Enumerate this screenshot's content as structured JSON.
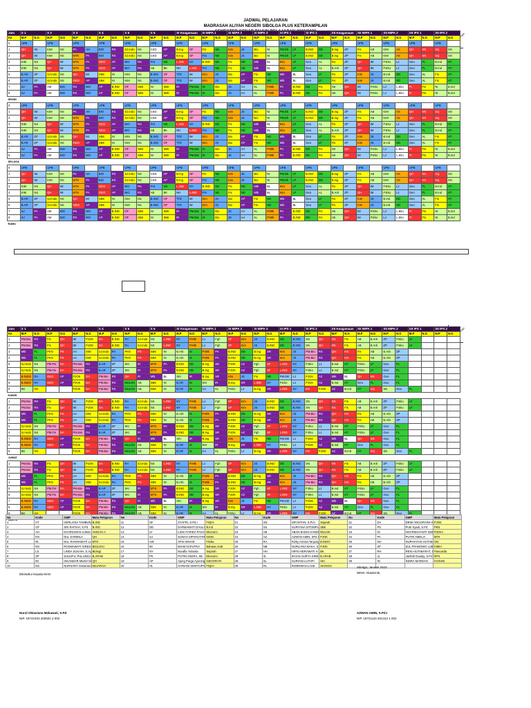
{
  "header": {
    "line1": "JADWAL PELAJARAN",
    "line2": "MADRASAH ALIYAH NEGERI SIBOLGA PLUS KETERAMPILAN",
    "line3": "SEMESTER GENAP TAHUN PELAJARAN 2022/2023"
  },
  "classes": [
    "X 1",
    "X 2",
    "X 3",
    "X 4",
    "X 5",
    "X 6",
    "XI Keagamaan",
    "XI MIPA 1",
    "XI MIPA 2",
    "XI MIPA 3",
    "XI IPS 1",
    "XI IPS 2",
    "XII Keagamaan",
    "XII MIPA 1",
    "XII MIPA 2",
    "XII IPS 1",
    "XII IPS 2"
  ],
  "corner": {
    "hari": "Hari",
    "jam": "Jam",
    "ke": "Ke"
  },
  "col_mp": "M.P",
  "col_ng": "N.G",
  "days_top": [
    "SENIN",
    "SELASA",
    "RABU"
  ],
  "days_bottom": [
    "KAMIS",
    "JUMAT",
    "SABTU"
  ],
  "block1_rows": [
    [
      "0",
      "UPB",
      "",
      "UPB",
      "",
      "UPB",
      "",
      "UPB",
      "",
      "UPB",
      "",
      "UPB",
      "",
      "UPB",
      "",
      "UPB",
      "",
      "UPB",
      "",
      "UPB",
      "",
      "UPB",
      "",
      "UPB",
      "",
      "UPB",
      "",
      "UPB",
      "",
      "UPB",
      "",
      "UPB",
      "",
      "UPB",
      ""
    ],
    [
      "1",
      "QH",
      "IM",
      "KIM",
      "NS",
      "PA",
      "AH",
      "BIO",
      "RS",
      "SJ.Indo",
      "NS",
      "CKD",
      "AP",
      "B.Ing",
      "OF",
      "Fis",
      "ND",
      "Kim",
      "JS",
      "Bio",
      "NI",
      "PM.Ek",
      "LF",
      "B.IND",
      "DD",
      "B.Ing",
      "ZP",
      "Fis",
      "AB",
      "KIM",
      "AS",
      "QH",
      "KN",
      "Soj",
      "SN",
      "Geo",
      "FL"
    ],
    [
      "2",
      "QH",
      "IM",
      "KIM",
      "NS",
      "MTK",
      "PA",
      "BIO",
      "RS",
      "SJ.Indo",
      "NS",
      "CKD",
      "AP",
      "B.Ing",
      "OF",
      "FIS",
      "ND",
      "Kim",
      "JS",
      "Bio",
      "NI",
      "PM.Ek",
      "LF",
      "B.IND",
      "DD",
      "B.Ing",
      "ZP",
      "Fis",
      "AB",
      "KIM",
      "AS",
      "QH",
      "KN",
      "Soj",
      "SN",
      "Geo",
      "FL"
    ],
    [
      "3",
      "KIM",
      "NS",
      "QH",
      "IM",
      "MTK",
      "PA",
      "GEO",
      "AP",
      "BIO",
      "RS",
      "FIS",
      "ND",
      "L.IND",
      "NY",
      "B.IND",
      "DD",
      "Fis",
      "ND",
      "Mtk",
      "BL",
      "Eko",
      "LF",
      "Geo",
      "AL",
      "Fis",
      "ZP",
      "QH",
      "IM",
      "P.Eko",
      "LJ",
      "Geo",
      "FL",
      "B.Ind",
      "HT"
    ],
    [
      "4",
      "KIM",
      "NS",
      "QH",
      "IM",
      "MTK",
      "PA",
      "GEO",
      "AP",
      "BIO",
      "RS",
      "AB",
      "BK",
      "NH",
      "L.IND",
      "FIS",
      "ND",
      "Fis",
      "ND",
      "Mtk",
      "BL",
      "Eko",
      "LF",
      "Geo",
      "AL",
      "B.Arb",
      "ZP",
      "QH",
      "IM",
      "P.Eko",
      "LJ",
      "Geo",
      "FL",
      "B.Ind",
      "HT"
    ],
    [
      "5",
      "B.AR",
      "ZP",
      "SJ.Indo",
      "NS",
      "QH",
      "IM",
      "SBK",
      "NI",
      "KIM",
      "NS",
      "B.ING",
      "OF",
      "TFZ",
      "IM",
      "Kim",
      "JS",
      "Bio",
      "AP",
      "Fis",
      "ND",
      "Mtk",
      "BL",
      "Geo",
      "LF",
      "Fis",
      "ZP",
      "Kim",
      "JS",
      "B.Ind",
      "DD",
      "Geo",
      "AL",
      "Fis",
      "HT"
    ],
    [
      "6",
      "B.AR",
      "ZP",
      "SJ.Indo",
      "NS",
      "GEO",
      "AP",
      "SBK",
      "NI",
      "KIM",
      "NS",
      "B.ING",
      "OF",
      "TFZ",
      "IM",
      "Kim",
      "JS",
      "Bio",
      "AP",
      "Fis",
      "ND",
      "Mtk",
      "BL",
      "Geo",
      "LF",
      "Fis",
      "ZP",
      "Kim",
      "JS",
      "B.Ind",
      "DD",
      "Geo",
      "AL",
      "Fis",
      "HT"
    ],
    [
      "7",
      "SJ",
      "PA",
      "AM",
      "BIO",
      "RS",
      "BIO",
      "AP",
      "B.IND",
      "OF",
      "SBK",
      "NI",
      "SBK",
      "IR",
      "PM.Bat",
      "IS",
      "Bio",
      "JS",
      "AA",
      "KL",
      "P.Mtk",
      "PA",
      "B.IND",
      "DD",
      "Fis",
      "AB",
      "QH",
      "IM",
      "P.Eko",
      "LJ",
      "L.Eko",
      "FI",
      "Fis",
      "NI",
      "B.Ind",
      "HT",
      "P.Eko",
      "LF"
    ],
    [
      "8",
      "SJ",
      "PA",
      "AM",
      "BIO",
      "RS",
      "BIO",
      "AP",
      "B.IND",
      "OF",
      "SBK",
      "NI",
      "SBK",
      "IR",
      "PM.Bat",
      "IS",
      "Bio",
      "JS",
      "AA",
      "KL",
      "P.Mtk",
      "PA",
      "B.IND",
      "DD",
      "Fis",
      "AB",
      "QH",
      "IM",
      "P.Eko",
      "LJ",
      "L.Eko",
      "FI",
      "Fis",
      "NI",
      "B.Ind",
      "HT",
      "P.Eko",
      "LF"
    ]
  ],
  "block2_rows": [
    [
      "1",
      "PM.Bio",
      "RS",
      "Fis",
      "QH",
      "IM",
      "PJOK",
      "DA",
      "B.IND",
      "RA",
      "SJ.Indo",
      "NS",
      "L.IND",
      "NY",
      "P.Mtk",
      "LJ",
      "Fgh",
      "SF",
      "Kim",
      "JS",
      "B.IND",
      "DD",
      "B.ING",
      "SN",
      "QH",
      "KN",
      "Fis",
      "AB",
      "B.Arb",
      "ZP",
      "P.Eko",
      "LF"
    ],
    [
      "2",
      "PM.Bio",
      "RS",
      "Fis",
      "QH",
      "IM",
      "PJOK",
      "DA",
      "B.IND",
      "RA",
      "SJ.Indo",
      "NS",
      "L.IND",
      "NY",
      "P.Mtk",
      "LJ",
      "Fgh",
      "SF",
      "Kim",
      "JS",
      "B.IND",
      "DD",
      "B.ING",
      "SN",
      "QH",
      "KN",
      "Fis",
      "AB",
      "B.Arb",
      "ZP",
      "P.Eko",
      "LF"
    ],
    [
      "3",
      "Mtk",
      "FL",
      "PKN",
      "PS",
      "AA",
      "MW",
      "SJ.Indo",
      "RA",
      "PKN",
      "PS",
      "SBK",
      "NI",
      "B.Arb",
      "IS",
      "P.Mtk",
      "PA",
      "B.IND",
      "DD",
      "B.Ing",
      "SR",
      "Kim",
      "JS",
      "PM.Bio",
      "RS",
      "QH",
      "KN",
      "Fis",
      "AB",
      "B.Arb",
      "ZP"
    ],
    [
      "4",
      "Mtk",
      "FL",
      "PKN",
      "PS",
      "AA",
      "MW",
      "SJ.Indo",
      "RA",
      "PKN",
      "PS",
      "SBK",
      "NI",
      "B.Arb",
      "IS",
      "P.Mtk",
      "PA",
      "B.IND",
      "DD",
      "B.Ing",
      "SR",
      "Kim",
      "JS",
      "PM.Bio",
      "RS",
      "QH",
      "KN",
      "Fis",
      "AB",
      "B.Arb",
      "ZP"
    ],
    [
      "5",
      "SJ.Indo",
      "NS",
      "PM.Fis",
      "DA",
      "PM.Bio",
      "RS",
      "B.AR",
      "ZP",
      "SKI",
      "IR",
      "MTK",
      "PA",
      "B.IND",
      "DD",
      "B.Ing",
      "SR",
      "PJOK",
      "AZ",
      "Fgh",
      "SF",
      "L.IND",
      "NY",
      "P.Eko",
      "LJ",
      "B.Ind",
      "HT",
      "P.Eko",
      "LF",
      "Geo",
      "FL"
    ],
    [
      "6",
      "SJ.Indo",
      "NS",
      "PM.Fis",
      "DA",
      "PM.Bio",
      "RS",
      "B.AR",
      "ZP",
      "SKI",
      "IR",
      "MTK",
      "PA",
      "B.IND",
      "DD",
      "B.Ing",
      "SR",
      "PJOK",
      "AZ",
      "Fgh",
      "SF",
      "L.IND",
      "NY",
      "P.Eko",
      "LJ",
      "B.Ind",
      "HT",
      "P.Eko",
      "LF",
      "Geo",
      "FL"
    ],
    [
      "7",
      "B.INDO",
      "RA",
      "GEO",
      "AP",
      "PJOK",
      "DA",
      "PM.Bio",
      "RS",
      "QH",
      "IR",
      "Mtk",
      "BL",
      "SKI",
      "IR",
      "B.Ing",
      "SR",
      "Kim",
      "JS",
      "Fis",
      "ND",
      "PM.Ekl",
      "LJ",
      "PJOK",
      "AZ",
      "Mtk",
      "BL",
      "QH",
      "KN",
      "Geo",
      "FL"
    ],
    [
      "8",
      "B.INDO",
      "RA",
      "GEO",
      "AP",
      "PJOK",
      "DA",
      "PM.Bio",
      "RS",
      "MULOK",
      "AB",
      "SBK",
      "NI",
      "B.AR",
      "IS",
      "SKI",
      "IR",
      "B.Ing",
      "SR",
      "L.IND",
      "NY",
      "P.Eko",
      "LJ",
      "PJOK",
      "AZ",
      "B.Ind",
      "HT",
      "Geo",
      "FL",
      "Geo",
      "FL"
    ],
    [
      "9",
      "BK",
      "HH",
      "",
      "",
      "PJOK",
      "DA",
      "PM.Bio",
      "RS",
      "MULOK",
      "AB",
      "SBK",
      "NI",
      "B.AR",
      "IS",
      "AA",
      "KL",
      "P.Eko",
      "LJ",
      "B.Ing",
      "SR",
      "L.IND",
      "NY",
      "KN",
      "PJOK",
      "AZ",
      "B.Ind",
      "HT",
      "Soj",
      "SN",
      "Geo",
      "FL"
    ]
  ],
  "legend_headers": [
    "No",
    "Kode",
    "GMP",
    "Mata Pelajaran",
    "No",
    "Kode",
    "GMP",
    "Mata Pelajaran",
    "No",
    "Kode",
    "GMP",
    "Mata Pelajaran",
    "No",
    "Kode",
    "GMP",
    "Mata Pelajaran"
  ],
  "legend": [
    [
      "1",
      "HT",
      "HERLIANA TAMBUNAN, S.Pd",
      "B.IND",
      "11",
      "SF",
      "SYAFRI, S.Pd.I",
      "FIQIH",
      "21",
      "SN",
      "SRI INTAN, S.Pd.I",
      "Sejarah",
      "31",
      "DA",
      "DEWI ANGGRAINI HUTABARAT,S.Pd",
      "PJOK"
    ],
    [
      "2",
      "OF",
      "SRI RAFIAH, S.Pd",
      "B.ING",
      "12",
      "DD",
      "DARMAWATI DAULAY, S.Pd",
      "B.Ind",
      "22",
      "SS",
      "SURYANA SITOMPUL, S.Pd",
      "SBK",
      "32",
      "PS",
      "Putri Syadi, S.Pd",
      "PKN"
    ],
    [
      "3",
      "AH",
      "KHAIRUMAN LUBIS, S.Ag",
      "AKIDAH A",
      "13",
      "LF",
      "LIDIA FARIDA PASARIBU, S",
      "Ekonomi",
      "23",
      "AB",
      "ABAN BADIS HANDIBIR, SP",
      "MULOK",
      "33",
      "NI",
      "NOVRIDAYANTI SIMANORA, S.Pd",
      "FISIKA"
    ],
    [
      "4",
      "KN",
      "Dra. KARMILA",
      "QH",
      "14",
      "SJ",
      "SUNAH SIPAHUTAR, S.Pd.I",
      "KIMIA",
      "24",
      "AZ",
      "AZWAN AMIN, SPd.I",
      "PJOK",
      "34",
      "PA",
      "PUTRI AMELIA",
      "MTK"
    ],
    [
      "5",
      "RL",
      "Dra. RAHMAWATI LUBIS",
      "MTK",
      "15",
      "AW",
      "AFNI WAHID",
      "Fisika",
      "25",
      "RA",
      "Rizky Annisa Tanjung,S.Pd",
      "B.INDO",
      "35",
      "NH",
      "NURHAYANI HUTABARAT, S.Pd",
      "SKI"
    ],
    [
      "6",
      "RS",
      "ROSMAWATI SIREGAR",
      "BIOLOGI",
      "16",
      "IM",
      "IMAM SAPUTRA",
      "Bahasa Arab",
      "26",
      "NB",
      "NURLIANA BAKA, S.Pd",
      "PJOK",
      "36",
      "ZP",
      "ZUL PRABOWO LUBIS, S.Pd",
      "KIMIA"
    ],
    [
      "7",
      "LS",
      "LINDA SUKAIH, S.Ag",
      "Biologi",
      "17",
      "NY",
      "Nurafla Yolanda",
      "Sejarah",
      "27",
      "HH",
      "HIPSI HERAWATI H.TANJUNG",
      "BK",
      "37",
      "RH",
      "RENI HUTABARAT, S.Pd",
      "Pancasila"
    ],
    [
      "8",
      "ZP",
      "ZULKIFLI PULUNGAN, S.Pd.I",
      "B.ARAB",
      "18",
      "PK",
      "PUTRA INDRA, SE",
      "Ekonomi",
      "28",
      "IS",
      "IKHAN SURYA SIREGAR, S.S",
      "B.ARAB",
      "38",
      "JL",
      "Janifah Daulay, S.Pd",
      "MTK"
    ],
    [
      "9",
      "IM",
      "ISKANDAR MUDA MANURUNG, S.Ag",
      "QH",
      "19",
      "AP",
      "Ajeng Purga Ayuningtias, S.Pd",
      "GEOGRAFI",
      "29",
      "SL",
      "SURIANI LUTHFI",
      "SKI",
      "39",
      "IN",
      "INDRA MARDAN",
      "KH/SSN"
    ],
    [
      "10",
      "NS",
      "NURSARY Simamora",
      "SEJARAH",
      "20",
      "HL",
      "HARIANI SIMATUPANG",
      "FIQIH",
      "30",
      "RL",
      "RIZERMAN LASE",
      "SKI/SOS",
      "",
      "",
      "",
      ""
    ]
  ],
  "signature_left": {
    "known": "Diketahui Kepala MAN",
    "name": "Nurul Oktaviana Mekawati, S.Pd",
    "nip": "NIP. 19741003 200501 2 002"
  },
  "signature_right": {
    "place": "Sibolga,        Januari 2023",
    "role": "WKM. Akademik,",
    "name": "AZWAN AMIN, S.Pd.I",
    "nip": "NIP. 19721110 201412 1 002"
  },
  "colors": {
    "purple": "#3a0a4a",
    "yellow": "#ffff00",
    "green": "#33cc33",
    "blue": "#66aaff"
  }
}
